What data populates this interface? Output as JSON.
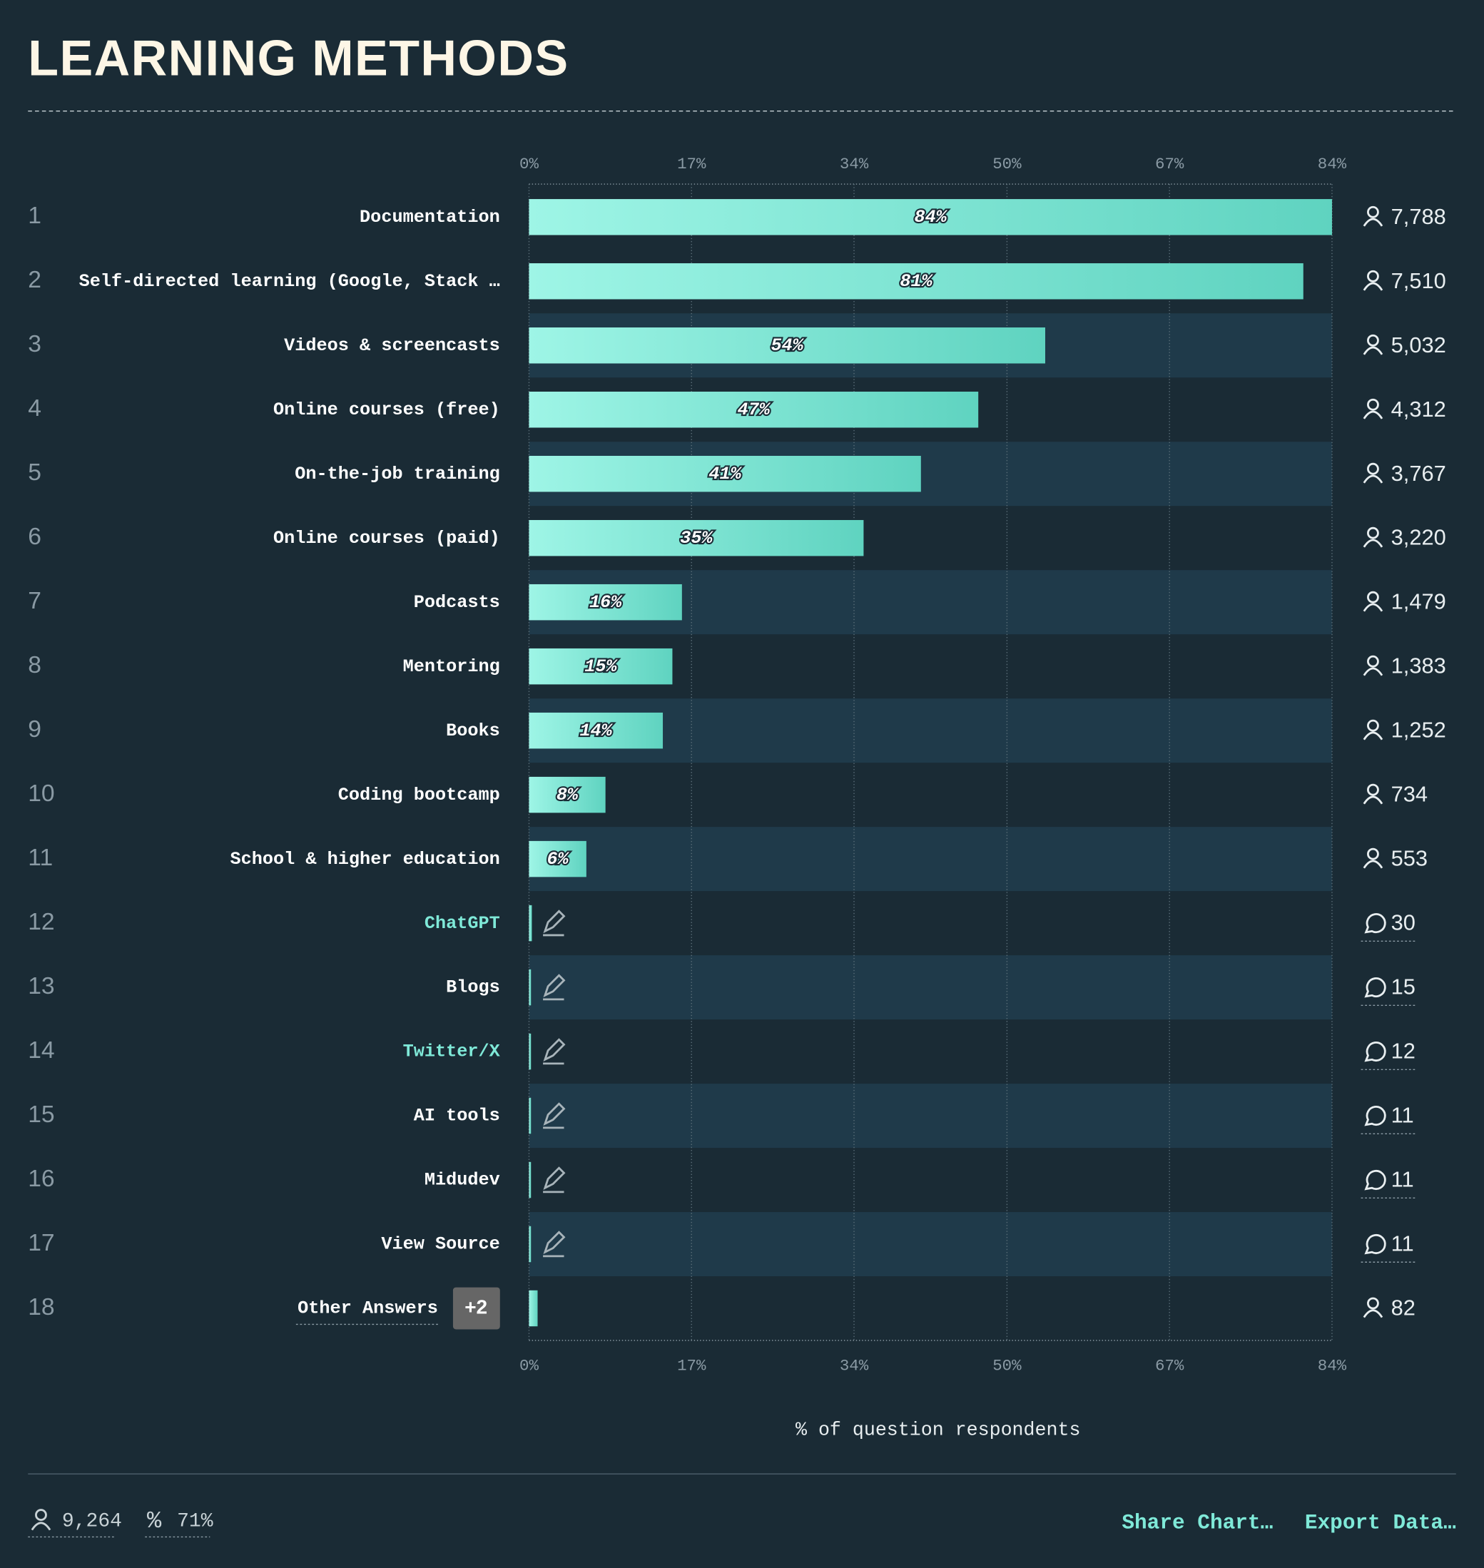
{
  "chart_data": {
    "type": "bar",
    "title": "LEARNING METHODS",
    "x_label": "% of question respondents",
    "ranks": [
      1,
      2,
      3,
      4,
      5,
      6,
      7,
      8,
      9,
      10,
      11,
      12,
      13,
      14,
      15,
      16,
      17,
      18
    ],
    "categories": [
      "Documentation",
      "Self-directed learning (Google, Stack …",
      "Videos & screencasts",
      "Online courses (free)",
      "On-the-job training",
      "Online courses (paid)",
      "Podcasts",
      "Mentoring",
      "Books",
      "Coding bootcamp",
      "School & higher education",
      "ChatGPT",
      "Blogs",
      "Twitter/X",
      "AI tools",
      "Midudev",
      "View Source",
      "Other Answers"
    ],
    "values": [
      84,
      81,
      54,
      47,
      41,
      35,
      16,
      15,
      14,
      8,
      6,
      0.3,
      0.2,
      0.1,
      0.1,
      0.1,
      0.1,
      0.9
    ],
    "value_labels": [
      "84%",
      "81%",
      "54%",
      "47%",
      "41%",
      "35%",
      "16%",
      "15%",
      "14%",
      "8%",
      "6%",
      null,
      null,
      null,
      null,
      null,
      null,
      null
    ],
    "count_labels": [
      "7,788",
      "7,510",
      "5,032",
      "4,312",
      "3,767",
      "3,220",
      "1,479",
      "1,383",
      "1,252",
      "734",
      "553",
      "30",
      "15",
      "12",
      "11",
      "11",
      "11",
      "82"
    ],
    "count_icons": [
      "person",
      "person",
      "person",
      "person",
      "person",
      "person",
      "person",
      "person",
      "person",
      "person",
      "person",
      "comment",
      "comment",
      "comment",
      "comment",
      "comment",
      "comment",
      "person"
    ],
    "label_colors": [
      "#ffffff",
      "#ffffff",
      "#ffffff",
      "#ffffff",
      "#ffffff",
      "#ffffff",
      "#ffffff",
      "#ffffff",
      "#ffffff",
      "#ffffff",
      "#ffffff",
      "#7fe9d8",
      "#ffffff",
      "#7fe9d8",
      "#ffffff",
      "#ffffff",
      "#ffffff",
      "#ffffff"
    ],
    "other_badge": "+2",
    "color": [
      "#9ef5e6",
      "#5fd3c0"
    ],
    "xlim": [
      0,
      84
    ],
    "xticks": [
      {
        "value": 0,
        "label": "0%"
      },
      {
        "value": 17,
        "label": "17%"
      },
      {
        "value": 34,
        "label": "34%"
      },
      {
        "value": 50,
        "label": "50%"
      },
      {
        "value": 67,
        "label": "67%"
      },
      {
        "value": 84,
        "label": "84%"
      }
    ],
    "grid": true
  },
  "footer": {
    "respondents": "9,264",
    "percentage": "71%",
    "share": "Share Chart…",
    "export": "Export Data…"
  }
}
